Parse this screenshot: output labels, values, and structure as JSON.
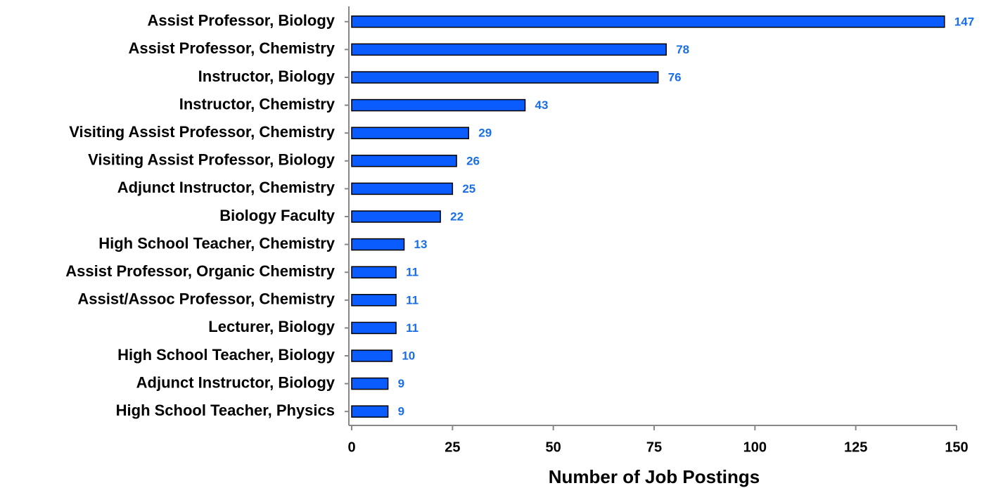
{
  "chart_data": {
    "type": "bar",
    "orientation": "horizontal",
    "categories": [
      "Assist Professor, Biology",
      "Assist Professor, Chemistry",
      "Instructor, Biology",
      "Instructor, Chemistry",
      "Visiting Assist Professor, Chemistry",
      "Visiting Assist Professor, Biology",
      "Adjunct Instructor, Chemistry",
      "Biology Faculty",
      "High School Teacher, Chemistry",
      "Assist Professor, Organic Chemistry",
      "Assist/Assoc Professor, Chemistry",
      "Lecturer, Biology",
      "High School Teacher, Biology",
      "Adjunct Instructor, Biology",
      "High School Teacher, Physics"
    ],
    "values": [
      147,
      78,
      76,
      43,
      29,
      26,
      25,
      22,
      13,
      11,
      11,
      11,
      10,
      9,
      9
    ],
    "color": "#0a5cff",
    "x_label": "Number of Job Postings",
    "xlim": [
      0,
      150
    ],
    "xticks": [
      0,
      25,
      50,
      75,
      100,
      125,
      150
    ]
  }
}
